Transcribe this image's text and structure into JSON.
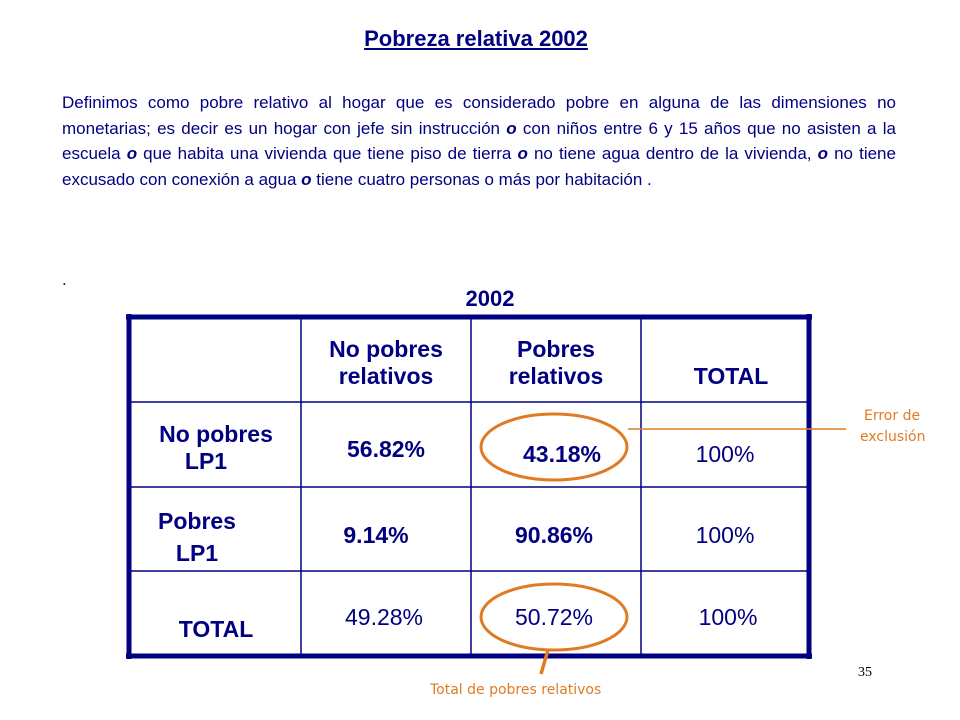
{
  "title": "Pobreza relativa 2002",
  "paragraph": {
    "p1": "Definimos como pobre relativo al hogar que es considerado pobre en alguna de las dimensiones no monetarias; es decir es un hogar con jefe sin instrucción ",
    "o1": "o",
    "p2": " con niños entre 6 y 15 años que no asisten a la escuela ",
    "o2": "o",
    "p3": " que habita una vivienda que tiene piso de tierra ",
    "o3": "o",
    "p4": " no tiene agua dentro de la vivienda, ",
    "o4": "o",
    "p5": " no tiene excusado con conexión a agua ",
    "o5": "o",
    "p6": " tiene cuatro personas o más por habitación ."
  },
  "dot": ".",
  "table": {
    "year": "2002",
    "columns": {
      "no_pobres_relativos": [
        "No pobres",
        "relativos"
      ],
      "pobres_relativos": [
        "Pobres",
        "relativos"
      ],
      "total": "TOTAL"
    },
    "rows": [
      {
        "label": [
          "No pobres",
          "LP1"
        ],
        "no_pobres_relativos": "56.82%",
        "pobres_relativos": "43.18%",
        "total": "100%"
      },
      {
        "label": [
          "Pobres",
          "LP1"
        ],
        "no_pobres_relativos": "9.14%",
        "pobres_relativos": "90.86%",
        "total": "100%"
      },
      {
        "label": [
          "TOTAL"
        ],
        "no_pobres_relativos": "49.28%",
        "pobres_relativos": "50.72%",
        "total": "100%"
      }
    ]
  },
  "annotations": {
    "exclusion_error": [
      "Error de",
      "exclusión"
    ],
    "total_relative_poor": "Total de pobres relativos",
    "highlight_color": "#e07b24"
  },
  "page_number": "35"
}
